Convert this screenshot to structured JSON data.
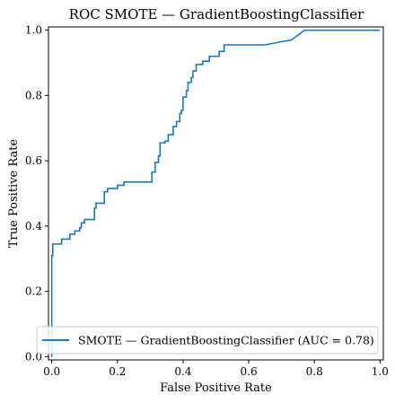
{
  "chart_data": {
    "type": "line",
    "title": "ROC SMOTE — GradientBoostingClassifier",
    "xlabel": "False Positive Rate",
    "ylabel": "True Positive Rate",
    "xlim": [
      -0.01,
      1.01
    ],
    "ylim": [
      -0.01,
      1.01
    ],
    "xticks": [
      0.0,
      0.2,
      0.4,
      0.6,
      0.8,
      1.0
    ],
    "yticks": [
      0.0,
      0.2,
      0.4,
      0.6,
      0.8,
      1.0
    ],
    "xtick_labels": [
      "0.0",
      "0.2",
      "0.4",
      "0.6",
      "0.8",
      "1.0"
    ],
    "ytick_labels": [
      "0.0",
      "0.2",
      "0.4",
      "0.6",
      "0.8",
      "1.0"
    ],
    "grid": false,
    "legend_position": "lower-right",
    "series": [
      {
        "name": "SMOTE — GradientBoostingClassifier (AUC = 0.78)",
        "color": "#1f77b4",
        "x": [
          0.0,
          0.0,
          0.003,
          0.003,
          0.01,
          0.01,
          0.03,
          0.03,
          0.055,
          0.055,
          0.07,
          0.07,
          0.085,
          0.085,
          0.09,
          0.09,
          0.1,
          0.1,
          0.13,
          0.13,
          0.135,
          0.135,
          0.16,
          0.16,
          0.17,
          0.17,
          0.2,
          0.2,
          0.22,
          0.22,
          0.305,
          0.305,
          0.315,
          0.315,
          0.325,
          0.325,
          0.33,
          0.33,
          0.345,
          0.345,
          0.355,
          0.355,
          0.37,
          0.37,
          0.38,
          0.38,
          0.39,
          0.39,
          0.395,
          0.395,
          0.4,
          0.4,
          0.41,
          0.41,
          0.415,
          0.415,
          0.425,
          0.425,
          0.43,
          0.43,
          0.44,
          0.44,
          0.46,
          0.46,
          0.48,
          0.48,
          0.51,
          0.51,
          0.525,
          0.525,
          0.65,
          0.7,
          0.73,
          0.77,
          0.78,
          1.0
        ],
        "y": [
          0.0,
          0.31,
          0.31,
          0.345,
          0.345,
          0.345,
          0.345,
          0.36,
          0.36,
          0.375,
          0.375,
          0.385,
          0.385,
          0.395,
          0.395,
          0.41,
          0.41,
          0.42,
          0.42,
          0.455,
          0.455,
          0.47,
          0.47,
          0.505,
          0.505,
          0.515,
          0.515,
          0.525,
          0.525,
          0.535,
          0.535,
          0.565,
          0.565,
          0.595,
          0.595,
          0.615,
          0.615,
          0.655,
          0.655,
          0.66,
          0.66,
          0.68,
          0.68,
          0.705,
          0.705,
          0.72,
          0.72,
          0.745,
          0.745,
          0.755,
          0.755,
          0.795,
          0.795,
          0.815,
          0.815,
          0.84,
          0.84,
          0.855,
          0.855,
          0.875,
          0.875,
          0.895,
          0.895,
          0.905,
          0.905,
          0.92,
          0.92,
          0.935,
          0.935,
          0.955,
          0.955,
          0.965,
          0.97,
          1.0,
          1.0,
          1.0
        ]
      }
    ]
  }
}
